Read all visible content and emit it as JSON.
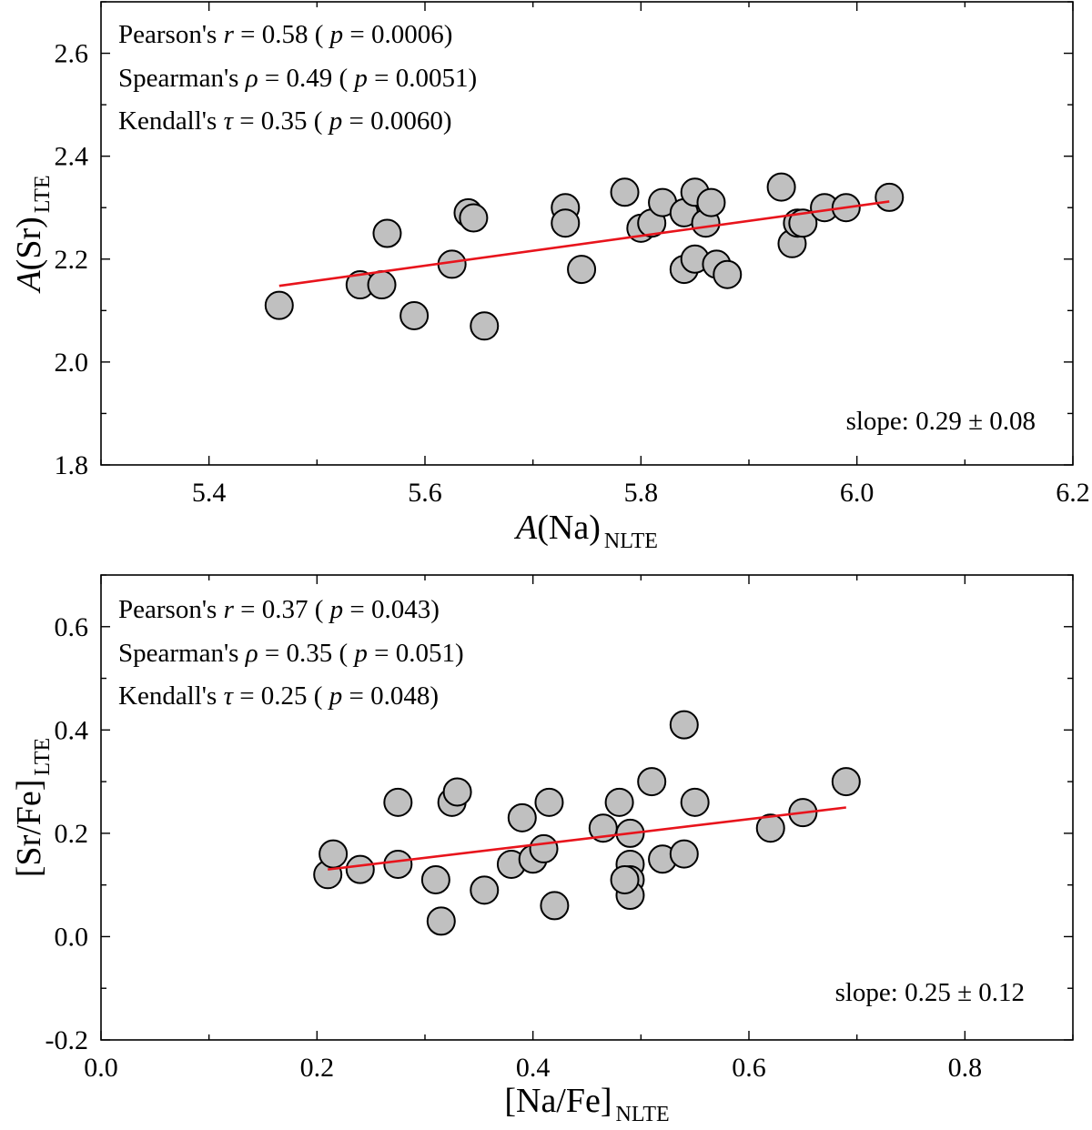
{
  "chart_data": [
    {
      "type": "scatter",
      "xlabel": {
        "main": "A",
        "paren": "(Na)",
        "sub": "NLTE"
      },
      "ylabel": {
        "main": "A",
        "paren": "(Sr)",
        "sub": "LTE"
      },
      "xlim": [
        5.3,
        6.2
      ],
      "ylim": [
        1.8,
        2.7
      ],
      "xticks": [
        5.4,
        5.6,
        5.8,
        6.0,
        6.2
      ],
      "xtick_labels": [
        "5.4",
        "5.6",
        "5.8",
        "6.0",
        "6.2"
      ],
      "yticks": [
        1.8,
        2.0,
        2.2,
        2.4,
        2.6
      ],
      "ytick_labels": [
        "1.8",
        "2.0",
        "2.2",
        "2.4",
        "2.6"
      ],
      "stats": [
        {
          "name": "Pearson's",
          "symbol": "r",
          "value": "= 0.58",
          "p": "= 0.0006"
        },
        {
          "name": "Spearman's",
          "symbol": "ρ",
          "value": "= 0.49",
          "p": "= 0.0051"
        },
        {
          "name": "Kendall's",
          "symbol": "τ",
          "value": "= 0.35",
          "p": "= 0.0060"
        }
      ],
      "slope_label": "slope: 0.29 ± 0.08",
      "fit_line": {
        "x": [
          5.465,
          6.03
        ],
        "y": [
          2.148,
          2.312
        ]
      },
      "points": [
        {
          "x": 5.465,
          "y": 2.11
        },
        {
          "x": 5.54,
          "y": 2.15
        },
        {
          "x": 5.56,
          "y": 2.15
        },
        {
          "x": 5.565,
          "y": 2.25
        },
        {
          "x": 5.59,
          "y": 2.09
        },
        {
          "x": 5.625,
          "y": 2.19
        },
        {
          "x": 5.64,
          "y": 2.29
        },
        {
          "x": 5.645,
          "y": 2.28
        },
        {
          "x": 5.655,
          "y": 2.07
        },
        {
          "x": 5.73,
          "y": 2.3
        },
        {
          "x": 5.73,
          "y": 2.27
        },
        {
          "x": 5.745,
          "y": 2.18
        },
        {
          "x": 5.785,
          "y": 2.33
        },
        {
          "x": 5.8,
          "y": 2.26
        },
        {
          "x": 5.81,
          "y": 2.27
        },
        {
          "x": 5.82,
          "y": 2.31
        },
        {
          "x": 5.84,
          "y": 2.29
        },
        {
          "x": 5.84,
          "y": 2.18
        },
        {
          "x": 5.85,
          "y": 2.33
        },
        {
          "x": 5.85,
          "y": 2.2
        },
        {
          "x": 5.86,
          "y": 2.27
        },
        {
          "x": 5.865,
          "y": 2.31
        },
        {
          "x": 5.87,
          "y": 2.19
        },
        {
          "x": 5.88,
          "y": 2.17
        },
        {
          "x": 5.93,
          "y": 2.34
        },
        {
          "x": 5.94,
          "y": 2.23
        },
        {
          "x": 5.945,
          "y": 2.27
        },
        {
          "x": 5.95,
          "y": 2.27
        },
        {
          "x": 5.97,
          "y": 2.3
        },
        {
          "x": 5.99,
          "y": 2.3
        },
        {
          "x": 6.03,
          "y": 2.32
        }
      ]
    },
    {
      "type": "scatter",
      "xlabel": {
        "main": "",
        "paren": "[Na/Fe]",
        "sub": "NLTE"
      },
      "ylabel": {
        "main": "",
        "paren": "[Sr/Fe]",
        "sub": "LTE"
      },
      "xlim": [
        0.0,
        0.9
      ],
      "ylim": [
        -0.2,
        0.7
      ],
      "xticks": [
        0.0,
        0.2,
        0.4,
        0.6,
        0.8
      ],
      "xtick_labels": [
        "0.0",
        "0.2",
        "0.4",
        "0.6",
        "0.8"
      ],
      "yticks": [
        -0.2,
        0.0,
        0.2,
        0.4,
        0.6
      ],
      "ytick_labels": [
        "-0.2",
        "0.0",
        "0.2",
        "0.4",
        "0.6"
      ],
      "stats": [
        {
          "name": "Pearson's",
          "symbol": "r",
          "value": "= 0.37",
          "p": "= 0.043"
        },
        {
          "name": "Spearman's",
          "symbol": "ρ",
          "value": "= 0.35",
          "p": "= 0.051"
        },
        {
          "name": "Kendall's",
          "symbol": "τ",
          "value": "= 0.25",
          "p": "= 0.048"
        }
      ],
      "slope_label": "slope: 0.25 ± 0.12",
      "fit_line": {
        "x": [
          0.21,
          0.69
        ],
        "y": [
          0.13,
          0.25
        ]
      },
      "points": [
        {
          "x": 0.21,
          "y": 0.12
        },
        {
          "x": 0.215,
          "y": 0.16
        },
        {
          "x": 0.24,
          "y": 0.13
        },
        {
          "x": 0.275,
          "y": 0.14
        },
        {
          "x": 0.275,
          "y": 0.26
        },
        {
          "x": 0.31,
          "y": 0.11
        },
        {
          "x": 0.315,
          "y": 0.03
        },
        {
          "x": 0.325,
          "y": 0.26
        },
        {
          "x": 0.33,
          "y": 0.28
        },
        {
          "x": 0.355,
          "y": 0.09
        },
        {
          "x": 0.38,
          "y": 0.14
        },
        {
          "x": 0.39,
          "y": 0.23
        },
        {
          "x": 0.4,
          "y": 0.15
        },
        {
          "x": 0.41,
          "y": 0.17
        },
        {
          "x": 0.415,
          "y": 0.26
        },
        {
          "x": 0.42,
          "y": 0.06
        },
        {
          "x": 0.465,
          "y": 0.21
        },
        {
          "x": 0.48,
          "y": 0.26
        },
        {
          "x": 0.49,
          "y": 0.2
        },
        {
          "x": 0.49,
          "y": 0.14
        },
        {
          "x": 0.49,
          "y": 0.11
        },
        {
          "x": 0.49,
          "y": 0.08
        },
        {
          "x": 0.485,
          "y": 0.11
        },
        {
          "x": 0.51,
          "y": 0.3
        },
        {
          "x": 0.52,
          "y": 0.15
        },
        {
          "x": 0.54,
          "y": 0.16
        },
        {
          "x": 0.54,
          "y": 0.41
        },
        {
          "x": 0.55,
          "y": 0.26
        },
        {
          "x": 0.62,
          "y": 0.21
        },
        {
          "x": 0.65,
          "y": 0.24
        },
        {
          "x": 0.69,
          "y": 0.3
        }
      ]
    }
  ]
}
